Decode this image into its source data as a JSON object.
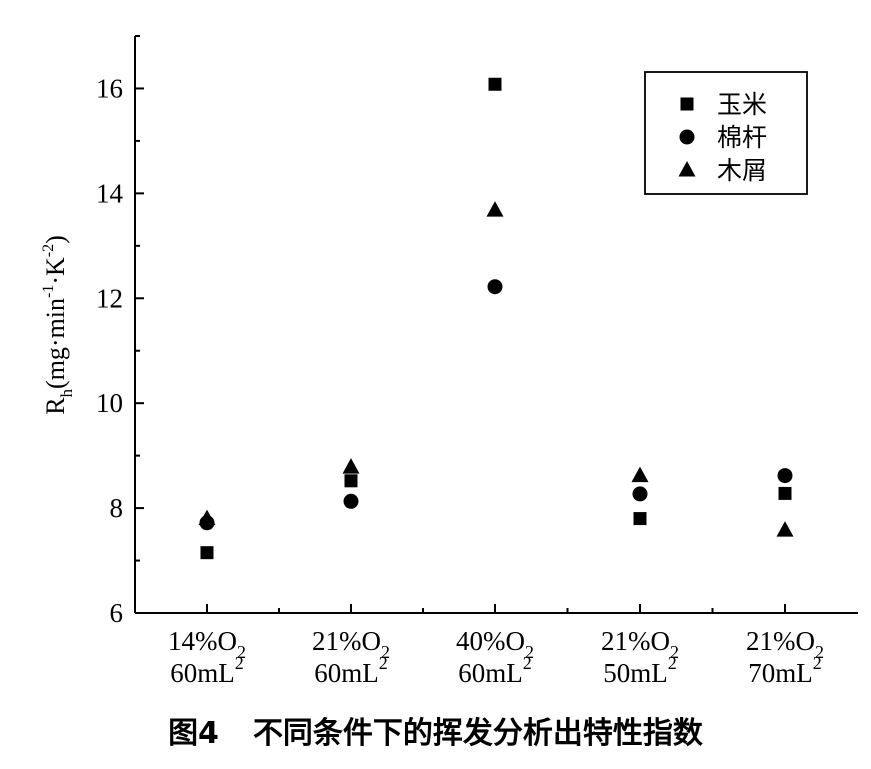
{
  "chart_data": {
    "type": "scatter",
    "ylabel": {
      "main": "R",
      "sub": "h",
      "open": "(mg·min",
      "exp1": "-1",
      "mid": "·K",
      "exp2": "-2",
      "close": ")"
    },
    "ylim": [
      6,
      17
    ],
    "yticks": [
      6,
      8,
      10,
      12,
      14,
      16
    ],
    "categories": [
      {
        "o2": "14%O",
        "o2_sub": "2",
        "vol": "60mL",
        "vol_sup": "2"
      },
      {
        "o2": "21%O",
        "o2_sub": "2",
        "vol": "60mL",
        "vol_sup": "2"
      },
      {
        "o2": "40%O",
        "o2_sub": "2",
        "vol": "60mL",
        "vol_sup": "2"
      },
      {
        "o2": "21%O",
        "o2_sub": "2",
        "vol": "50mL",
        "vol_sup": "2"
      },
      {
        "o2": "21%O",
        "o2_sub": "2",
        "vol": "70mL",
        "vol_sup": "2"
      }
    ],
    "series": [
      {
        "name": "玉米",
        "marker": "square",
        "values": [
          7.15,
          8.52,
          16.08,
          7.8,
          8.28
        ]
      },
      {
        "name": "棉杆",
        "marker": "circle",
        "values": [
          7.72,
          8.13,
          12.22,
          8.27,
          8.62
        ]
      },
      {
        "name": "木屑",
        "marker": "triangle",
        "values": [
          7.8,
          8.78,
          13.68,
          8.62,
          7.58
        ]
      }
    ],
    "legend_position": "top-right",
    "grid": false,
    "marker_color": "#000000"
  },
  "caption": {
    "figure": "图4",
    "title": "不同条件下的挥发分析出特性指数"
  }
}
